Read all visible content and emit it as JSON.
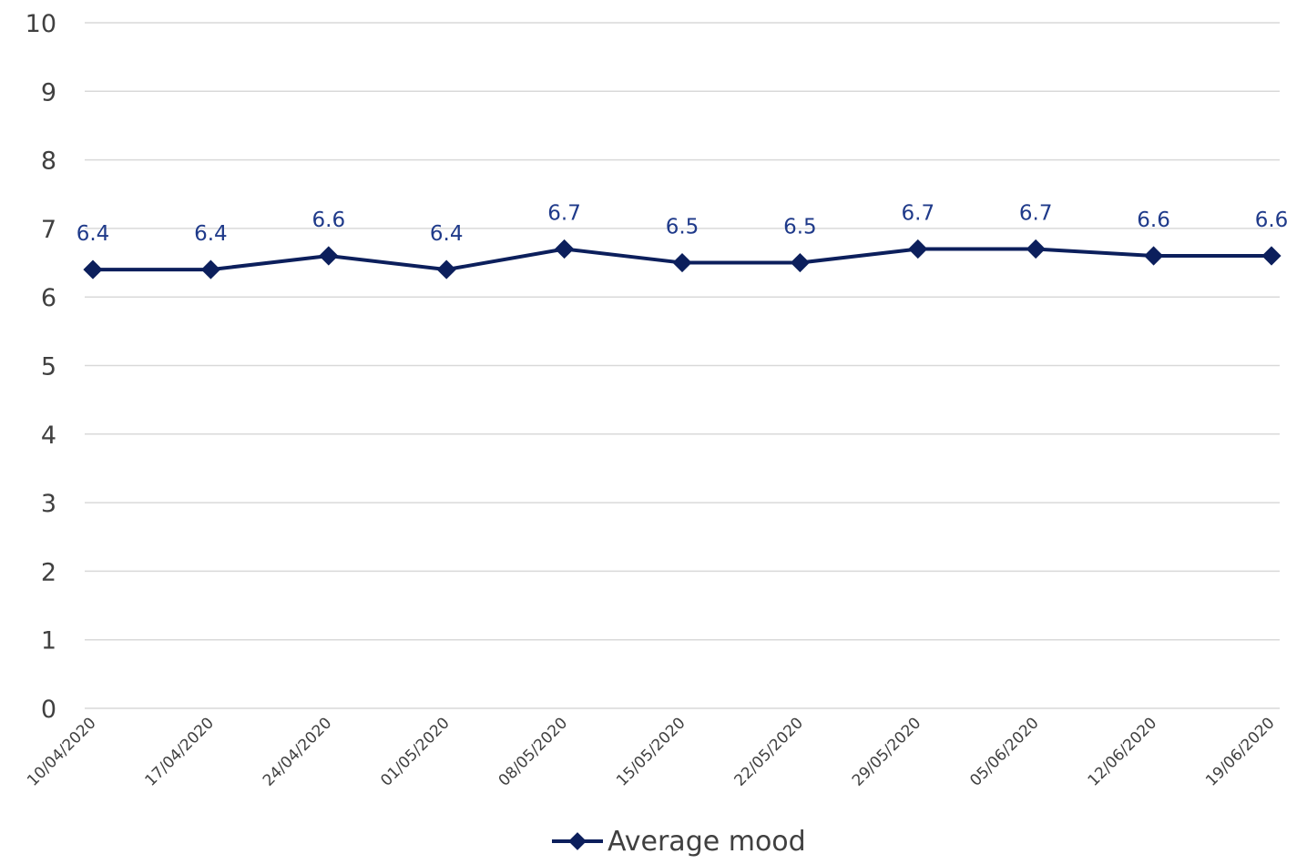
{
  "chart_data": {
    "type": "line",
    "title": "",
    "xlabel": "",
    "ylabel": "",
    "ylim": [
      0,
      10
    ],
    "ytick_step": 1,
    "grid": true,
    "legend_position": "bottom",
    "categories": [
      "10/04/2020",
      "17/04/2020",
      "24/04/2020",
      "01/05/2020",
      "08/05/2020",
      "15/05/2020",
      "22/05/2020",
      "29/05/2020",
      "05/06/2020",
      "12/06/2020",
      "19/06/2020"
    ],
    "series": [
      {
        "name": "Average mood",
        "values": [
          6.4,
          6.4,
          6.6,
          6.4,
          6.7,
          6.5,
          6.5,
          6.7,
          6.7,
          6.6,
          6.6
        ],
        "color": "#0c1f5c",
        "label_color": "#1f3a8a",
        "marker": "diamond"
      }
    ]
  }
}
